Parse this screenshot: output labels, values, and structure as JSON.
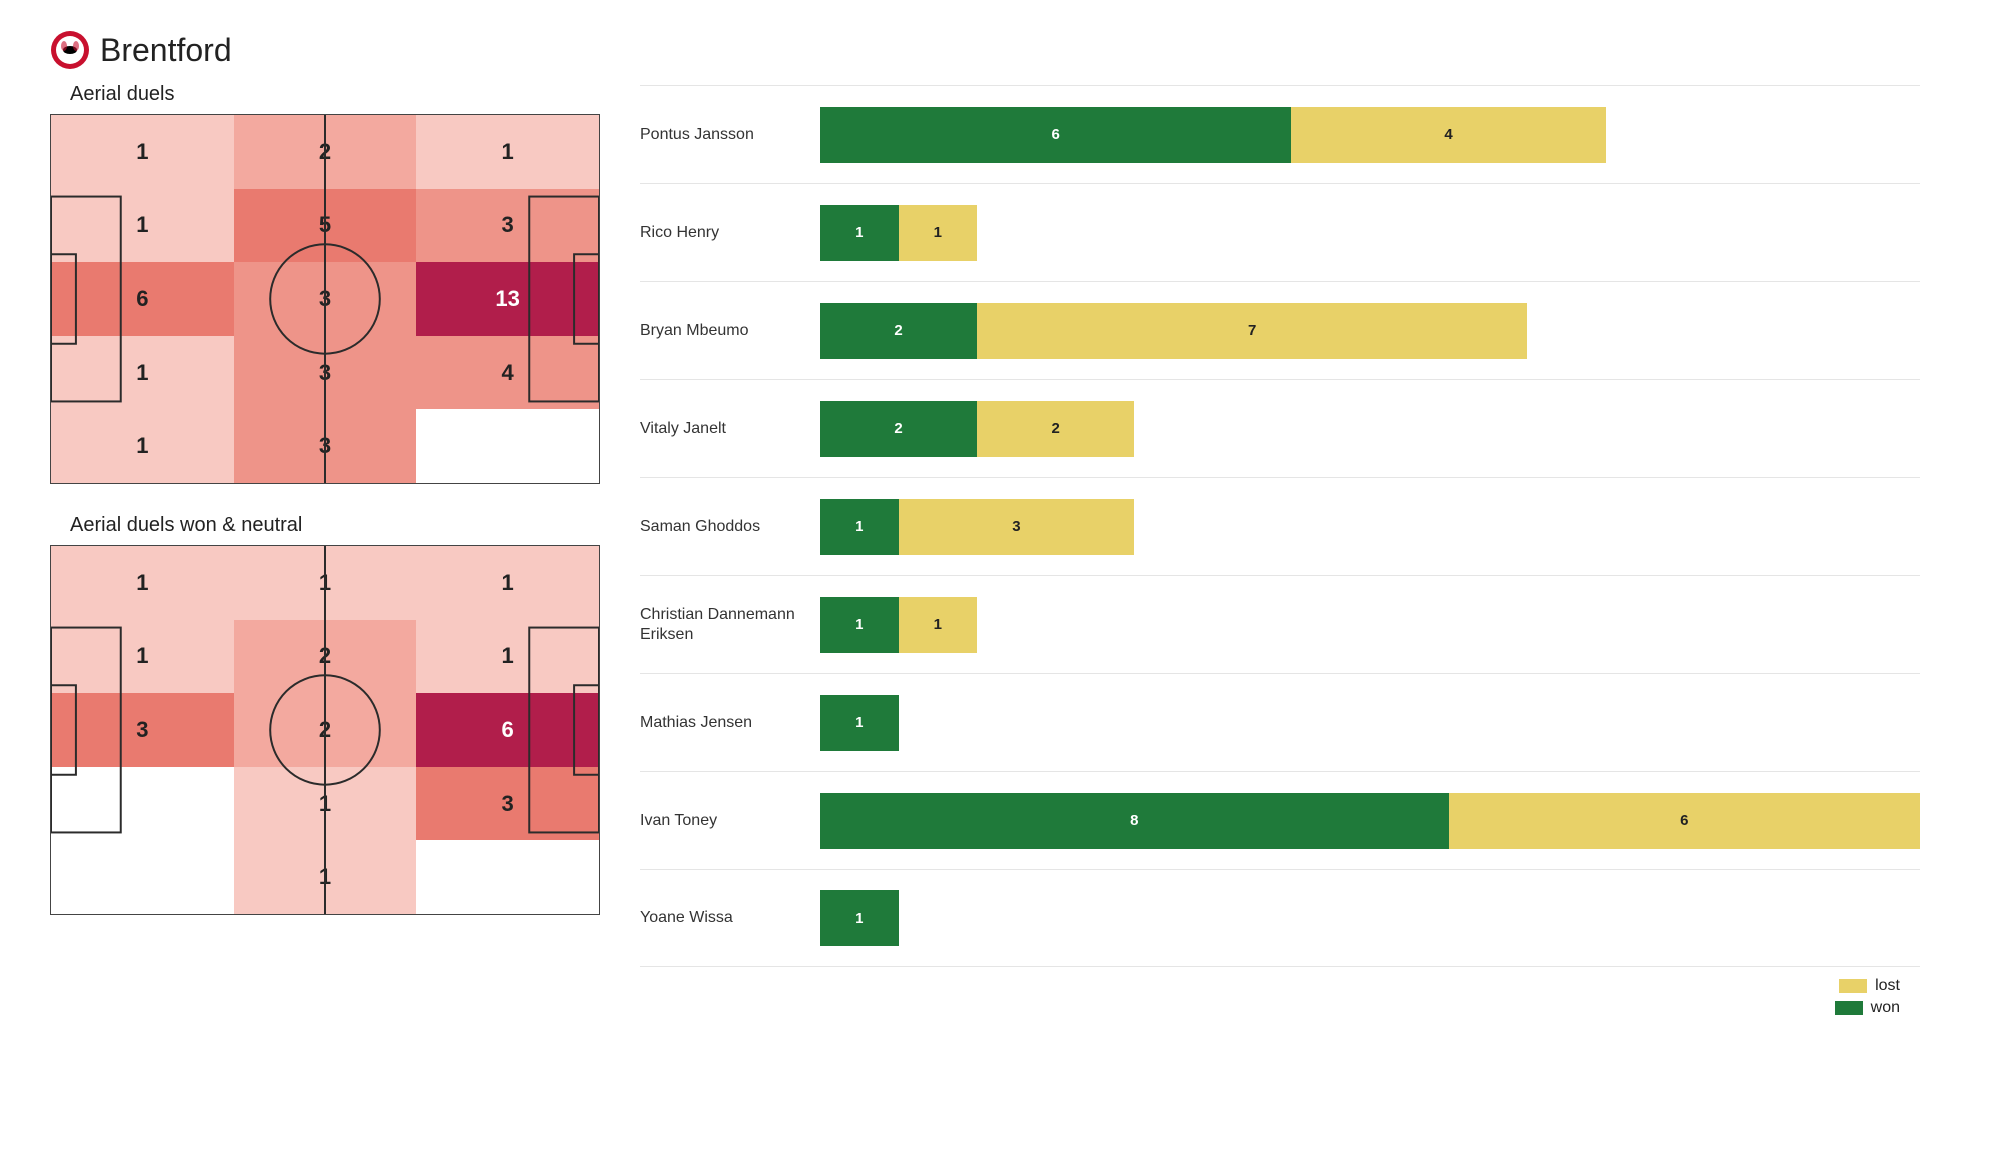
{
  "team_name": "Brentford",
  "logo": {
    "outer_color": "#c8102e",
    "inner_color": "#ffffff",
    "accent_color": "#000000"
  },
  "heatmap_palette": {
    "empty": "#ffffff",
    "v1": "#f8c9c2",
    "v2": "#f3a99f",
    "v3": "#ee9489",
    "v4": "#e97a6f",
    "v5": "#e46258",
    "v6": "#b11e4b"
  },
  "heatmaps": [
    {
      "title": "Aerial duels",
      "zones": [
        {
          "v": 1,
          "c": "v1"
        },
        {
          "v": 2,
          "c": "v2"
        },
        {
          "v": 1,
          "c": "v1"
        },
        {
          "v": 1,
          "c": "v1"
        },
        {
          "v": 5,
          "c": "v4"
        },
        {
          "v": 3,
          "c": "v3"
        },
        {
          "v": 6,
          "c": "v4"
        },
        {
          "v": 3,
          "c": "v3"
        },
        {
          "v": 13,
          "c": "v6",
          "light": true
        },
        {
          "v": 1,
          "c": "v1"
        },
        {
          "v": 3,
          "c": "v3"
        },
        {
          "v": 4,
          "c": "v3"
        },
        {
          "v": 1,
          "c": "v1"
        },
        {
          "v": 3,
          "c": "v3"
        },
        {
          "v": null,
          "c": "empty"
        }
      ]
    },
    {
      "title": "Aerial duels won & neutral",
      "zones": [
        {
          "v": 1,
          "c": "v1"
        },
        {
          "v": 1,
          "c": "v1"
        },
        {
          "v": 1,
          "c": "v1"
        },
        {
          "v": 1,
          "c": "v1"
        },
        {
          "v": 2,
          "c": "v2"
        },
        {
          "v": 1,
          "c": "v1"
        },
        {
          "v": 3,
          "c": "v4"
        },
        {
          "v": 2,
          "c": "v2"
        },
        {
          "v": 6,
          "c": "v6",
          "light": true
        },
        {
          "v": null,
          "c": "empty"
        },
        {
          "v": 1,
          "c": "v1"
        },
        {
          "v": 3,
          "c": "v4"
        },
        {
          "v": null,
          "c": "empty"
        },
        {
          "v": 1,
          "c": "v1"
        },
        {
          "v": null,
          "c": "empty"
        }
      ]
    }
  ],
  "barchart": {
    "max_total": 14,
    "won_color": "#1f7a3a",
    "lost_color": "#e8d168",
    "players": [
      {
        "name": "Pontus Jansson",
        "won": 6,
        "lost": 4
      },
      {
        "name": "Rico Henry",
        "won": 1,
        "lost": 1
      },
      {
        "name": "Bryan Mbeumo",
        "won": 2,
        "lost": 7
      },
      {
        "name": "Vitaly Janelt",
        "won": 2,
        "lost": 2
      },
      {
        "name": "Saman Ghoddos",
        "won": 1,
        "lost": 3
      },
      {
        "name": "Christian  Dannemann Eriksen",
        "won": 1,
        "lost": 1
      },
      {
        "name": "Mathias Jensen",
        "won": 1,
        "lost": 0
      },
      {
        "name": "Ivan Toney",
        "won": 8,
        "lost": 6
      },
      {
        "name": "Yoane Wissa",
        "won": 1,
        "lost": 0
      }
    ],
    "legend": [
      {
        "label": "lost",
        "key": "lost"
      },
      {
        "label": "won",
        "key": "won"
      }
    ]
  },
  "pitch_stroke": "#2b2b2b"
}
